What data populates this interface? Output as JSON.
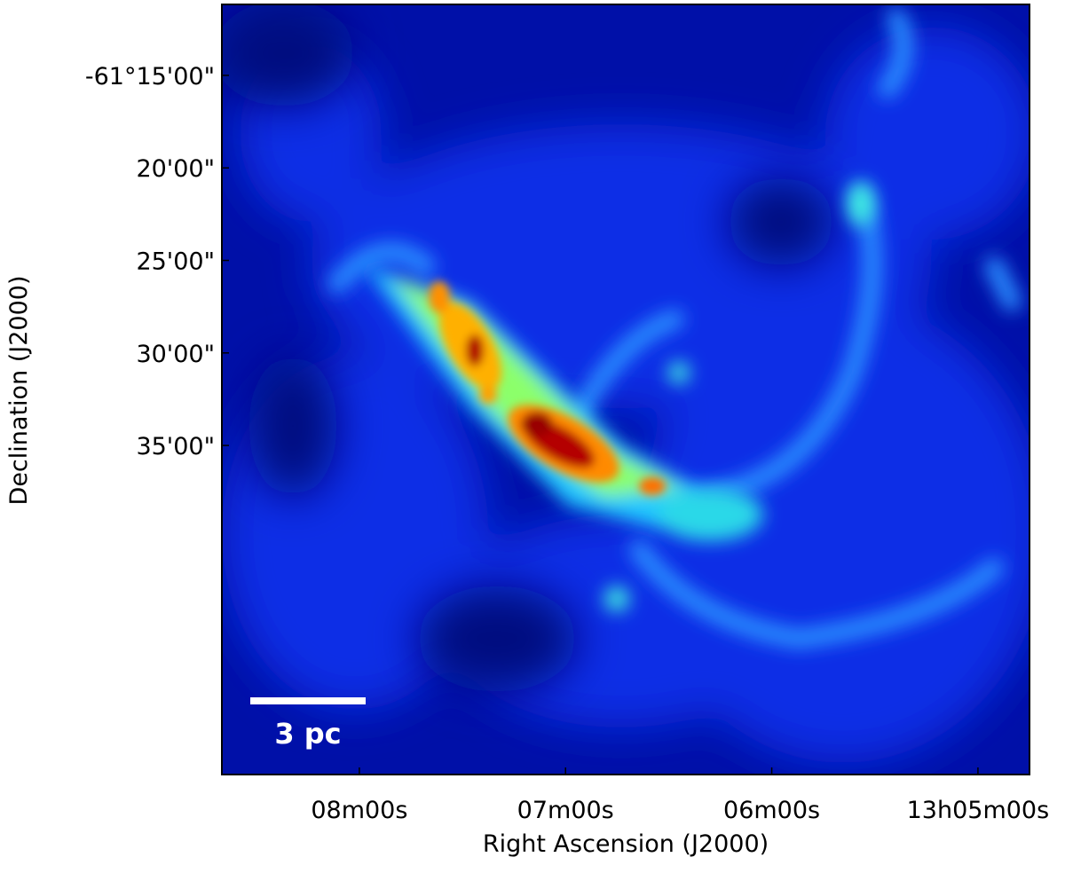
{
  "chart_data": {
    "type": "image",
    "xlabel": "Right Ascension (J2000)",
    "ylabel": "Declination (J2000)",
    "xlim": [
      47320,
      47085
    ],
    "ylim": [
      -222767,
      -220270
    ],
    "xticks": [
      {
        "value": 47280,
        "label": "08m00s"
      },
      {
        "value": 47220,
        "label": "07m00s"
      },
      {
        "value": 47160,
        "label": "06m00s"
      },
      {
        "value": 47100,
        "label": "13h05m00s"
      }
    ],
    "yticks": [
      {
        "value": -220500,
        "label": "-61°15'00\""
      },
      {
        "value": -220800,
        "label": "20'00\""
      },
      {
        "value": -221100,
        "label": "25'00\""
      },
      {
        "value": -221400,
        "label": "30'00\""
      },
      {
        "value": -221700,
        "label": "35'00\""
      }
    ],
    "annotations": [
      "3 pc"
    ]
  }
}
